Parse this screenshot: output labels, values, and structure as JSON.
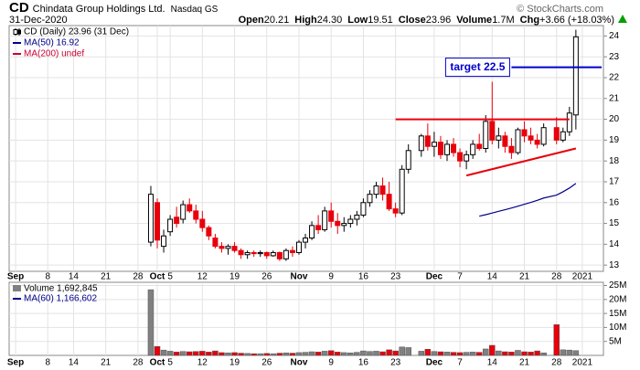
{
  "header": {
    "symbol": "CD",
    "name": "Chindata Group Holdings Ltd.",
    "exchange": "Nasdaq GS",
    "date": "31-Dec-2020",
    "copyright": "© StockCharts.com",
    "stats": [
      {
        "label": "Open",
        "value": "20.21"
      },
      {
        "label": "High",
        "value": "24.30"
      },
      {
        "label": "Low",
        "value": "19.51"
      },
      {
        "label": "Close",
        "value": "23.96"
      },
      {
        "label": "Volume",
        "value": "1.7M"
      },
      {
        "label": "Chg",
        "value": "+3.66 (+18.03%)"
      }
    ]
  },
  "chart_data": {
    "type": "candlestick",
    "name": "CD (Daily) 23.96 (31 Dec)",
    "x": [
      "2020-09-30",
      "2020-10-01",
      "2020-10-02",
      "2020-10-05",
      "2020-10-06",
      "2020-10-07",
      "2020-10-08",
      "2020-10-09",
      "2020-10-12",
      "2020-10-13",
      "2020-10-14",
      "2020-10-15",
      "2020-10-16",
      "2020-10-19",
      "2020-10-20",
      "2020-10-21",
      "2020-10-22",
      "2020-10-23",
      "2020-10-26",
      "2020-10-27",
      "2020-10-28",
      "2020-10-29",
      "2020-10-30",
      "2020-11-02",
      "2020-11-03",
      "2020-11-04",
      "2020-11-05",
      "2020-11-06",
      "2020-11-09",
      "2020-11-10",
      "2020-11-11",
      "2020-11-12",
      "2020-11-13",
      "2020-11-16",
      "2020-11-17",
      "2020-11-18",
      "2020-11-19",
      "2020-11-20",
      "2020-11-23",
      "2020-11-24",
      "2020-11-25",
      "2020-11-27",
      "2020-11-30",
      "2020-12-01",
      "2020-12-02",
      "2020-12-03",
      "2020-12-04",
      "2020-12-07",
      "2020-12-08",
      "2020-12-09",
      "2020-12-10",
      "2020-12-11",
      "2020-12-14",
      "2020-12-15",
      "2020-12-16",
      "2020-12-17",
      "2020-12-18",
      "2020-12-21",
      "2020-12-22",
      "2020-12-23",
      "2020-12-24",
      "2020-12-28",
      "2020-12-29",
      "2020-12-30",
      "2020-12-31"
    ],
    "open": [
      14.1,
      16.0,
      13.9,
      14.6,
      15.3,
      15.2,
      15.9,
      15.6,
      15.2,
      14.8,
      14.3,
      13.9,
      13.8,
      13.9,
      13.7,
      13.5,
      13.6,
      13.55,
      13.6,
      13.45,
      13.6,
      13.3,
      13.7,
      13.6,
      14.1,
      14.3,
      14.9,
      14.7,
      15.6,
      15.1,
      14.9,
      15.0,
      15.2,
      15.4,
      16.0,
      16.4,
      16.8,
      16.4,
      15.7,
      15.5,
      17.6,
      18.5,
      19.2,
      18.7,
      18.9,
      18.3,
      18.8,
      18.4,
      18.0,
      18.3,
      18.8,
      18.6,
      19.9,
      19.0,
      19.2,
      18.7,
      18.4,
      19.5,
      19.2,
      19.0,
      18.8,
      19.6,
      19.0,
      19.4,
      20.21
    ],
    "high": [
      16.8,
      16.2,
      14.7,
      15.4,
      15.8,
      16.1,
      16.2,
      15.9,
      15.6,
      14.9,
      14.5,
      14.1,
      14.0,
      14.1,
      13.8,
      13.7,
      13.7,
      13.7,
      13.65,
      13.7,
      13.65,
      13.8,
      13.9,
      14.2,
      14.5,
      15.1,
      15.4,
      15.8,
      16.0,
      15.5,
      15.3,
      15.4,
      15.6,
      16.2,
      16.6,
      17.0,
      17.2,
      17.0,
      16.0,
      17.8,
      18.8,
      19.3,
      19.8,
      19.4,
      19.2,
      19.0,
      19.1,
      18.6,
      18.5,
      19.0,
      19.3,
      20.2,
      21.8,
      19.6,
      19.4,
      19.1,
      19.6,
      19.9,
      19.6,
      19.3,
      19.8,
      20.1,
      19.6,
      20.6,
      24.3
    ],
    "low": [
      13.9,
      13.8,
      13.6,
      14.4,
      14.8,
      15.0,
      15.5,
      15.0,
      14.6,
      14.2,
      13.8,
      13.6,
      13.5,
      13.6,
      13.3,
      13.3,
      13.4,
      13.4,
      13.3,
      13.4,
      13.2,
      13.2,
      13.4,
      13.5,
      13.8,
      14.2,
      14.5,
      14.6,
      14.8,
      14.5,
      14.6,
      14.8,
      14.9,
      15.3,
      15.8,
      16.2,
      16.1,
      15.6,
      15.3,
      15.4,
      17.4,
      18.2,
      18.5,
      18.2,
      18.1,
      18.0,
      18.2,
      17.7,
      17.6,
      18.1,
      18.5,
      18.4,
      18.8,
      18.6,
      18.4,
      18.1,
      18.3,
      18.9,
      18.8,
      18.6,
      18.7,
      18.8,
      18.9,
      19.2,
      19.51
    ],
    "close": [
      16.4,
      14.2,
      14.4,
      15.2,
      15.0,
      15.9,
      15.6,
      15.2,
      14.8,
      14.4,
      13.9,
      13.8,
      13.9,
      13.7,
      13.5,
      13.6,
      13.55,
      13.6,
      13.45,
      13.6,
      13.3,
      13.7,
      13.6,
      14.1,
      14.3,
      14.9,
      14.7,
      15.6,
      15.1,
      14.9,
      15.0,
      15.2,
      15.4,
      16.0,
      16.4,
      16.8,
      16.4,
      15.7,
      15.5,
      17.6,
      18.5,
      19.2,
      18.7,
      18.9,
      18.3,
      18.8,
      18.4,
      18.0,
      18.3,
      18.8,
      18.6,
      19.9,
      19.0,
      19.2,
      18.7,
      18.4,
      19.5,
      19.2,
      19.0,
      18.8,
      19.6,
      19.0,
      19.4,
      20.3,
      23.96
    ],
    "up_color": "#000000",
    "down_color": "#e8000b",
    "series": [
      {
        "name": "MA(50) 16.92",
        "color": "#00008b",
        "values": [
          null,
          null,
          null,
          null,
          null,
          null,
          null,
          null,
          null,
          null,
          null,
          null,
          null,
          null,
          null,
          null,
          null,
          null,
          null,
          null,
          null,
          null,
          null,
          null,
          null,
          null,
          null,
          null,
          null,
          null,
          null,
          null,
          null,
          null,
          null,
          null,
          null,
          null,
          null,
          null,
          null,
          null,
          null,
          null,
          null,
          null,
          null,
          null,
          null,
          null,
          15.35,
          15.42,
          15.5,
          15.58,
          15.66,
          15.74,
          15.83,
          15.92,
          16.01,
          16.11,
          16.22,
          16.36,
          16.52,
          16.7,
          16.92
        ]
      },
      {
        "name": "MA(200) undef",
        "color": "#cc0033",
        "values": [
          null,
          null,
          null,
          null,
          null,
          null,
          null,
          null,
          null,
          null,
          null,
          null,
          null,
          null,
          null,
          null,
          null,
          null,
          null,
          null,
          null,
          null,
          null,
          null,
          null,
          null,
          null,
          null,
          null,
          null,
          null,
          null,
          null,
          null,
          null,
          null,
          null,
          null,
          null,
          null,
          null,
          null,
          null,
          null,
          null,
          null,
          null,
          null,
          null,
          null,
          null,
          null,
          null,
          null,
          null,
          null,
          null,
          null,
          null,
          null,
          null,
          null,
          null,
          null,
          null
        ]
      }
    ],
    "lines": [
      {
        "color": "#e8000b",
        "points": [
          [
            "2020-11-23",
            20
          ],
          [
            "2020-12-30",
            20
          ]
        ]
      },
      {
        "color": "#e8000b",
        "points": [
          [
            "2020-12-08",
            17.3
          ],
          [
            "2020-12-31",
            18.6
          ]
        ]
      },
      {
        "color": "#0000cc",
        "points": [
          [
            "2020-12-17",
            22.5
          ],
          [
            "2021-01-06",
            22.5
          ]
        ]
      }
    ],
    "annotations": [
      {
        "text": "target 22.5",
        "x": "2020-12-17",
        "y": 22.5,
        "color": "#0000cc"
      }
    ],
    "xlim": [
      "2020-08-31",
      "2021-01-05"
    ],
    "xticks": [
      {
        "value": "2020-09-01",
        "label": "Sep"
      },
      {
        "value": "2020-09-08",
        "label": "8"
      },
      {
        "value": "2020-09-14",
        "label": "14"
      },
      {
        "value": "2020-09-21",
        "label": "21"
      },
      {
        "value": "2020-09-28",
        "label": "28"
      },
      {
        "value": "2020-10-01",
        "label": "Oct"
      },
      {
        "value": "2020-10-05",
        "label": "5"
      },
      {
        "value": "2020-10-12",
        "label": "12"
      },
      {
        "value": "2020-10-19",
        "label": "19"
      },
      {
        "value": "2020-10-26",
        "label": "26"
      },
      {
        "value": "2020-11-02",
        "label": "Nov"
      },
      {
        "value": "2020-11-09",
        "label": "9"
      },
      {
        "value": "2020-11-16",
        "label": "16"
      },
      {
        "value": "2020-11-23",
        "label": "23"
      },
      {
        "value": "2020-12-01",
        "label": "Dec"
      },
      {
        "value": "2020-12-07",
        "label": "7"
      },
      {
        "value": "2020-12-14",
        "label": "14"
      },
      {
        "value": "2020-12-21",
        "label": "21"
      },
      {
        "value": "2020-12-28",
        "label": "28"
      },
      {
        "value": "2021-01-01",
        "label": "2021"
      }
    ],
    "ylim": [
      12.7,
      24.5
    ],
    "yticks": [
      13,
      14,
      15,
      16,
      17,
      18,
      19,
      20,
      21,
      22,
      23,
      24
    ],
    "grid": true,
    "volume_name": "Volume 1,692,845",
    "volume_color": "#808080",
    "volume_down_color": "#e8000b",
    "volume_ma_name": "MA(60) 1,166,602",
    "volume_ma_color": "#00008b",
    "volume": [
      23500000,
      3200000,
      1900000,
      1500000,
      1200000,
      1400000,
      1300000,
      1400000,
      1500000,
      1200000,
      1600000,
      1000000,
      900000,
      1000000,
      800000,
      700000,
      600000,
      600000,
      700000,
      600000,
      800000,
      900000,
      800000,
      1000000,
      1100000,
      1300000,
      1200000,
      1500000,
      1700000,
      1200000,
      1000000,
      900000,
      1100000,
      1600000,
      1400000,
      1500000,
      1300000,
      2000000,
      1600000,
      3000000,
      2800000,
      1500000,
      2200000,
      1400000,
      1300000,
      1200000,
      1100000,
      1000000,
      1100000,
      1200000,
      1100000,
      2300000,
      3600000,
      1600000,
      1300000,
      1200000,
      1800000,
      1300000,
      1200000,
      1600000,
      900000,
      11000000,
      2000000,
      1900000,
      1692845
    ],
    "volume_ylim": [
      0,
      25500000
    ],
    "volume_yticks": [
      {
        "value": 5000000,
        "label": "5M"
      },
      {
        "value": 10000000,
        "label": "10M"
      },
      {
        "value": 15000000,
        "label": "15M"
      },
      {
        "value": 20000000,
        "label": "20M"
      },
      {
        "value": 25000000,
        "label": "25M"
      }
    ]
  }
}
